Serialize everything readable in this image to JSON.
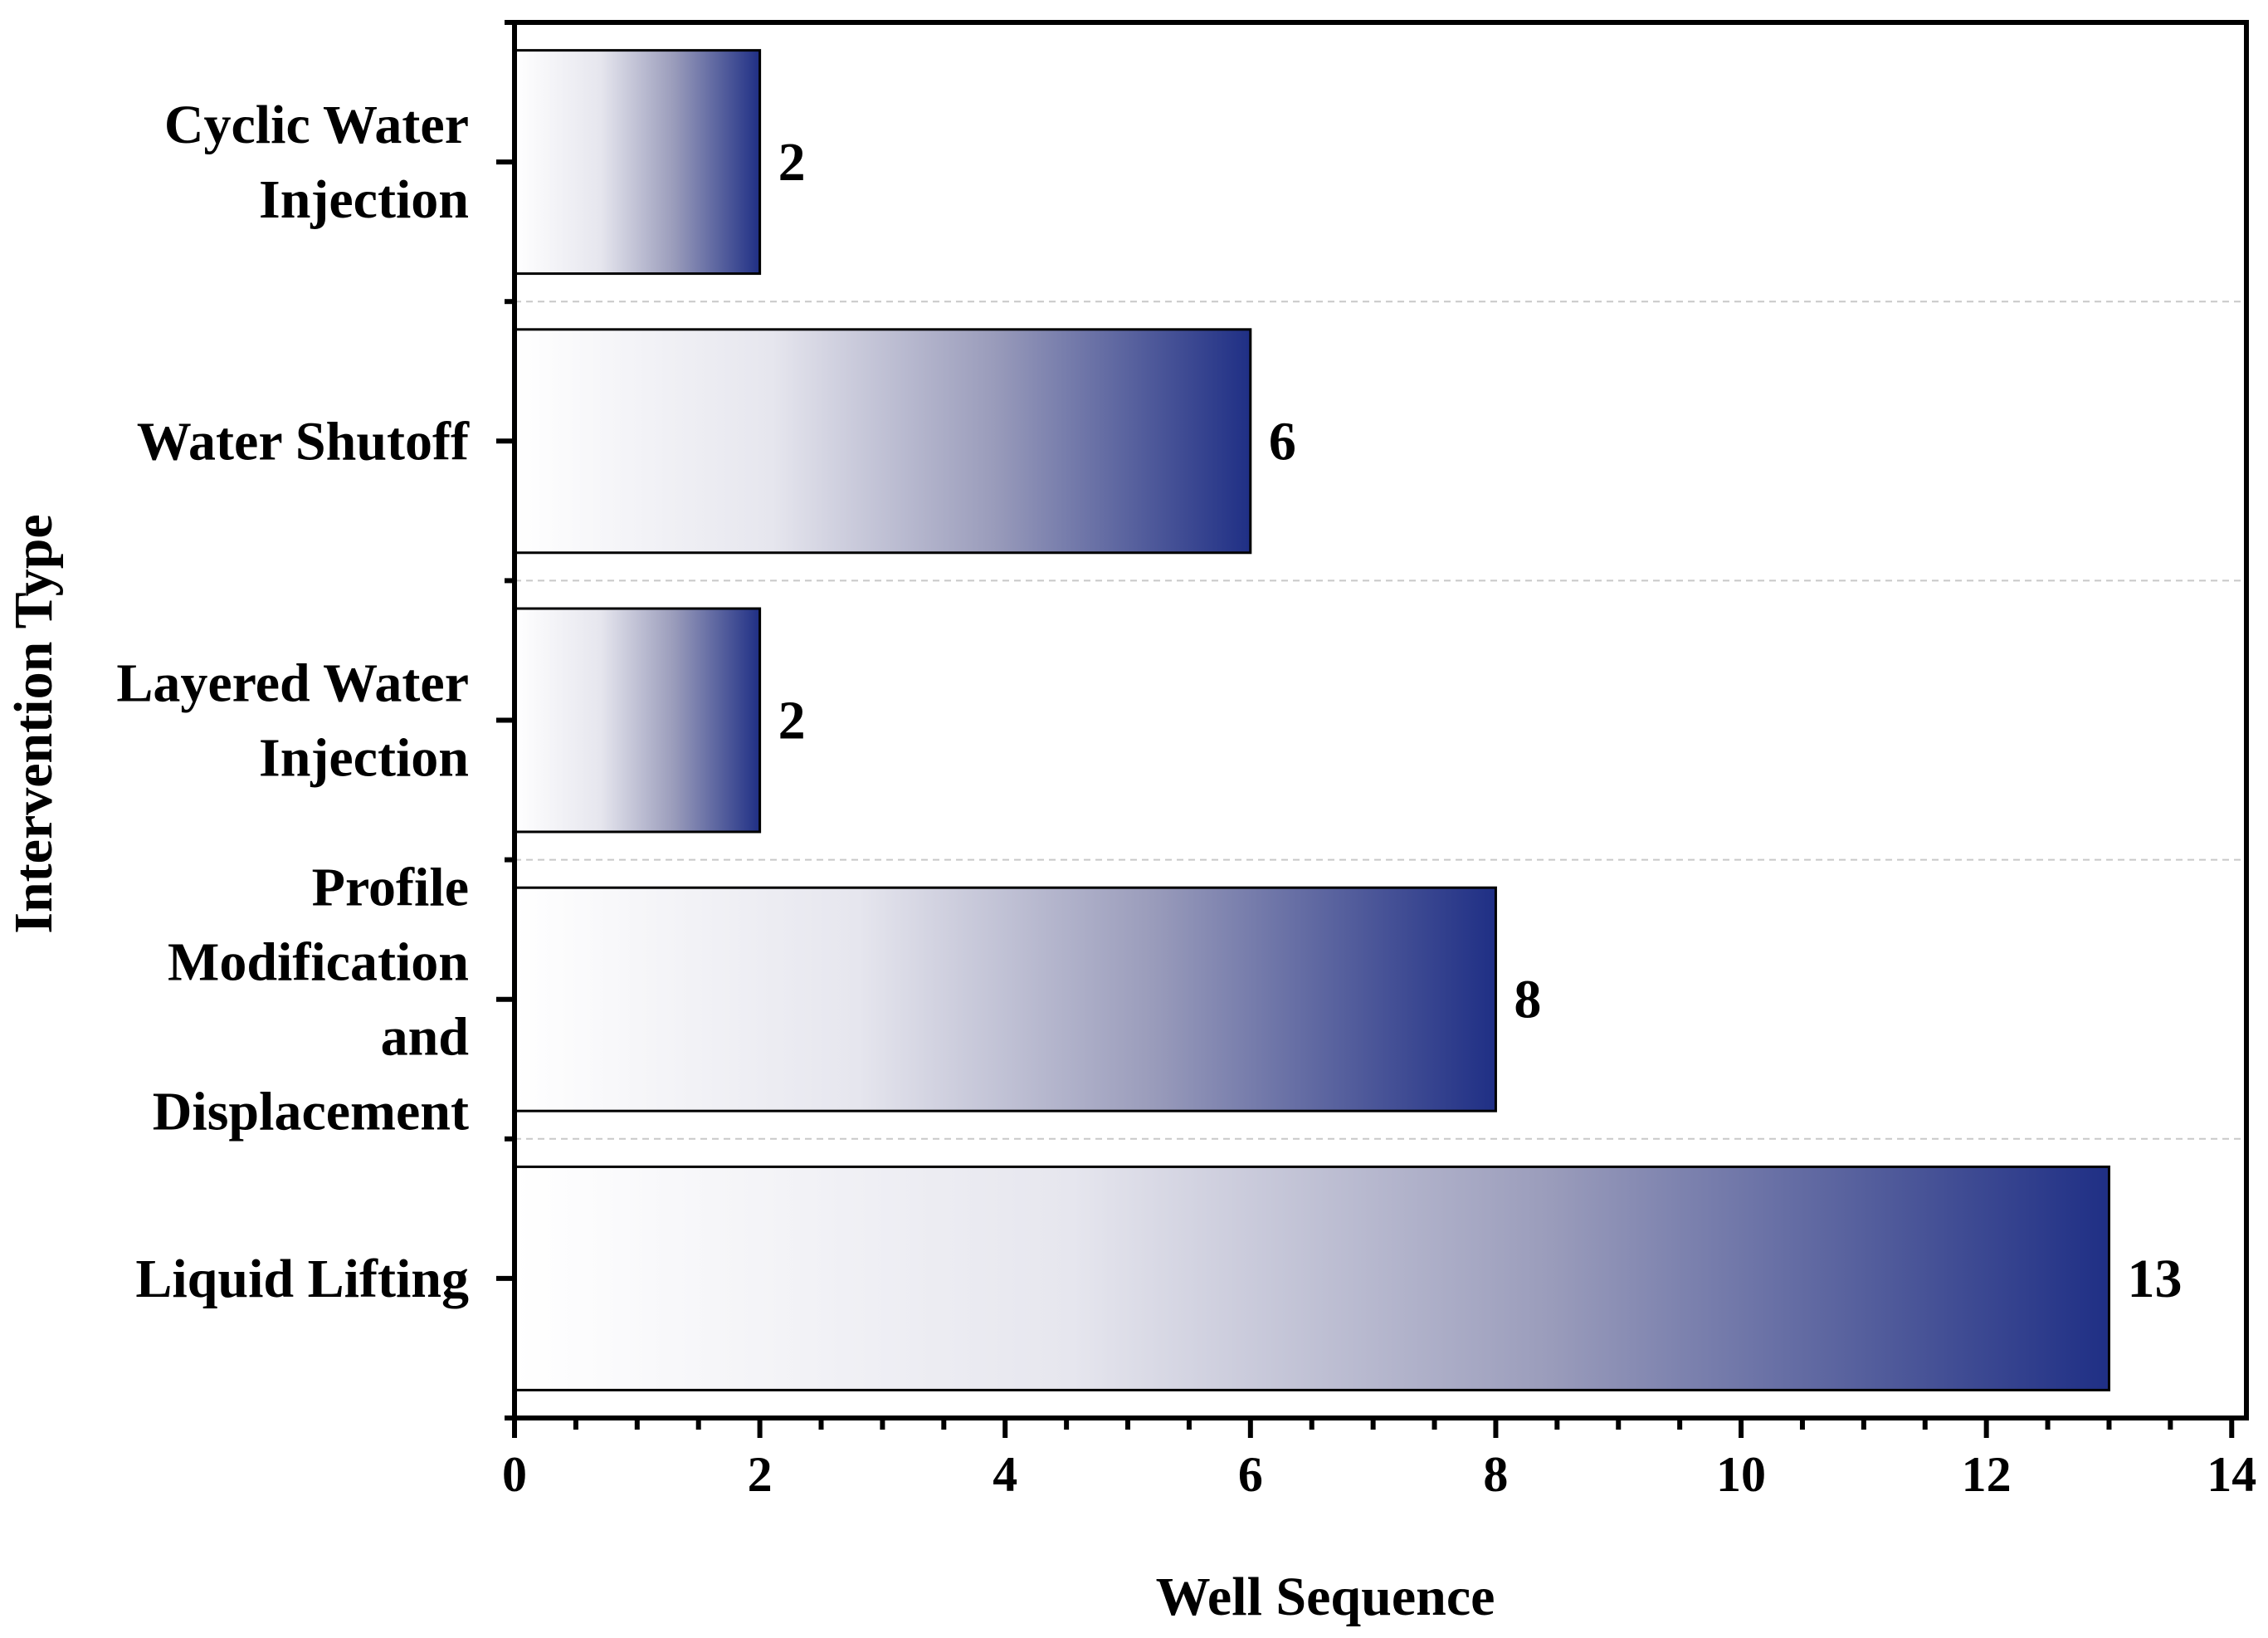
{
  "chart_data": {
    "type": "bar",
    "orientation": "horizontal",
    "title": "",
    "xlabel": "Well Sequence",
    "ylabel": "Intervention Type",
    "xlim": [
      0,
      14
    ],
    "x_ticks": [
      0,
      2,
      4,
      6,
      8,
      10,
      12,
      14
    ],
    "grid": "horizontal dashed separators",
    "categories": [
      [
        "Cyclic Water",
        "Injection"
      ],
      [
        "Water Shutoff"
      ],
      [
        "Layered Water",
        "Injection"
      ],
      [
        "Profile",
        "Modification",
        "and",
        "Displacement"
      ],
      [
        "Liquid Lifting"
      ]
    ],
    "values": [
      2,
      6,
      2,
      8,
      13
    ],
    "data_labels": [
      "2",
      "6",
      "2",
      "8",
      "13"
    ],
    "gradient_start": "#ffffff",
    "gradient_end": "#1f2f85"
  }
}
